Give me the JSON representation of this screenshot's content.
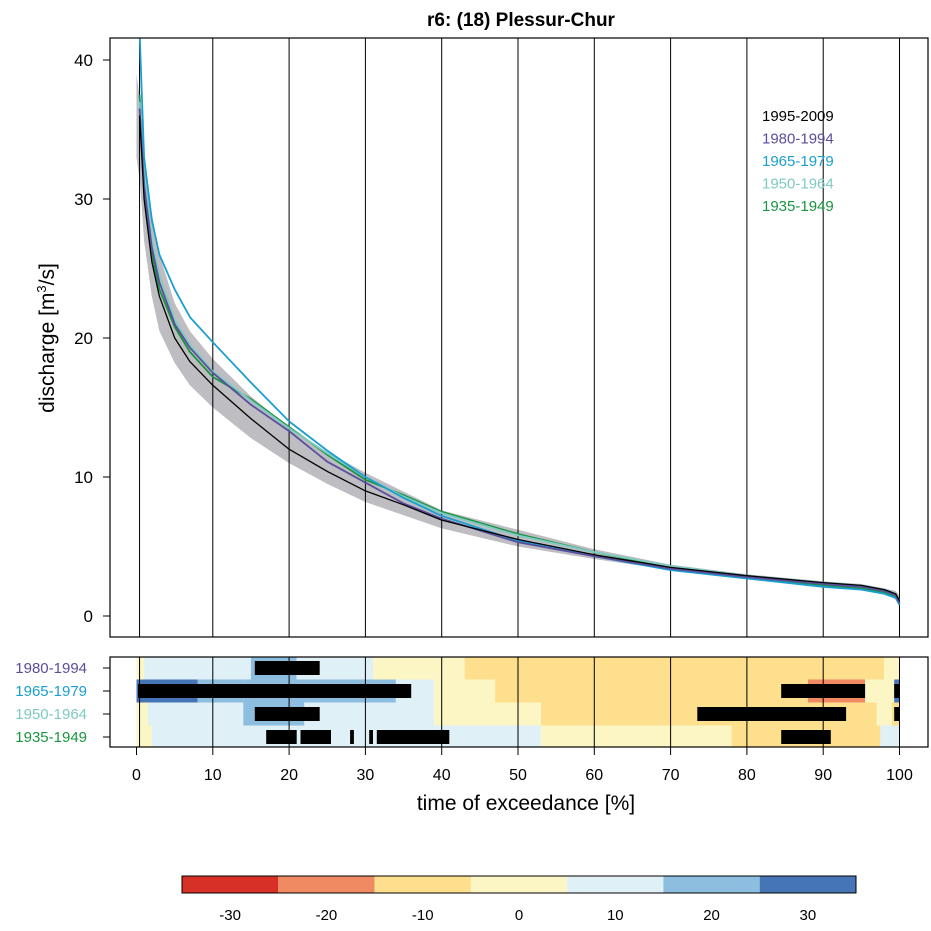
{
  "chart_data": [
    {
      "type": "line",
      "title": "r6: (18) Plessur-Chur",
      "ylabel": "discharge [m³/s]",
      "ylabel_main": "discharge [m",
      "ylabel_sup": "3",
      "ylabel_end": "/s]",
      "xlim": [
        0,
        100
      ],
      "ylim": [
        0,
        40
      ],
      "yticks": [
        0,
        10,
        20,
        30,
        40
      ],
      "vertical_grid": [
        0.4,
        10,
        20,
        30,
        40,
        50,
        60,
        70,
        80,
        90,
        100
      ],
      "legend_position": "top-right",
      "band": {
        "series": "1995-2009",
        "color": "#bdbdc2",
        "x": [
          0,
          0.5,
          1,
          2,
          3,
          5,
          7,
          10,
          15,
          20,
          25,
          30,
          40,
          50,
          60,
          70,
          80,
          90,
          95,
          98,
          99.5,
          100
        ],
        "upper": [
          39,
          37,
          33,
          29,
          26,
          22.5,
          20.5,
          18.5,
          15.8,
          13.6,
          11.8,
          10.3,
          7.6,
          6.2,
          4.8,
          3.7,
          3.0,
          2.5,
          2.3,
          2.0,
          1.8,
          1.5
        ],
        "lower": [
          33,
          31,
          27,
          23,
          20.5,
          18.2,
          16.6,
          15.0,
          12.8,
          11.0,
          9.5,
          8.2,
          6.3,
          5.0,
          4.1,
          3.3,
          2.7,
          2.2,
          2.0,
          1.6,
          1.2,
          1.0
        ]
      },
      "series": [
        {
          "name": "1995-2009",
          "color": "#000000",
          "x": [
            0.4,
            1,
            2,
            3,
            5,
            7,
            10,
            15,
            20,
            25,
            30,
            35,
            40,
            50,
            60,
            70,
            80,
            90,
            95,
            98,
            99.5,
            100
          ],
          "values": [
            36,
            30,
            25.5,
            23,
            20,
            18.3,
            16.6,
            14.2,
            12.0,
            10.4,
            9.0,
            8.0,
            6.9,
            5.5,
            4.4,
            3.5,
            2.9,
            2.4,
            2.2,
            1.9,
            1.6,
            1.1
          ]
        },
        {
          "name": "1980-1994",
          "color": "#5b4e9c",
          "x": [
            0.4,
            1,
            2,
            3,
            5,
            7,
            10,
            15,
            20,
            25,
            30,
            35,
            40,
            50,
            60,
            70,
            80,
            90,
            95,
            98,
            99.5,
            100
          ],
          "values": [
            36.5,
            31,
            26.5,
            24,
            21,
            19.3,
            17.5,
            15.2,
            13.3,
            11.1,
            9.6,
            8.1,
            7.0,
            5.3,
            4.3,
            3.4,
            2.8,
            2.3,
            2.1,
            1.8,
            1.5,
            0.9
          ]
        },
        {
          "name": "1965-1979",
          "color": "#1a9fd0",
          "x": [
            0.4,
            1,
            2,
            3,
            5,
            7,
            10,
            15,
            20,
            25,
            30,
            35,
            40,
            50,
            60,
            70,
            80,
            90,
            95,
            98,
            99.5,
            100
          ],
          "values": [
            42,
            33,
            28.5,
            26,
            23.5,
            21.5,
            19.7,
            16.8,
            14.0,
            11.9,
            10.0,
            8.5,
            7.2,
            5.4,
            4.3,
            3.3,
            2.7,
            2.1,
            1.9,
            1.6,
            1.3,
            0.8
          ]
        },
        {
          "name": "1950-1964",
          "color": "#7dcbc3",
          "x": [
            0.4,
            1,
            2,
            3,
            5,
            7,
            10,
            15,
            20,
            25,
            30,
            35,
            40,
            50,
            60,
            70,
            80,
            90,
            95,
            98,
            99.5,
            100
          ],
          "values": [
            37,
            32,
            27,
            24.5,
            21.3,
            19.5,
            17.6,
            15.5,
            13.5,
            11.7,
            10.0,
            8.6,
            7.4,
            5.8,
            4.6,
            3.6,
            2.9,
            2.4,
            2.2,
            1.9,
            1.6,
            1.1
          ]
        },
        {
          "name": "1935-1949",
          "color": "#1a9440",
          "x": [
            0.4,
            1,
            2,
            3,
            5,
            7,
            10,
            15,
            20,
            25,
            30,
            35,
            40,
            50,
            60,
            70,
            80,
            90,
            95,
            98,
            99.5,
            100
          ],
          "values": [
            37.5,
            31,
            26,
            23.5,
            20.8,
            19.0,
            17.2,
            15.6,
            13.6,
            11.6,
            9.8,
            8.7,
            7.5,
            5.9,
            4.6,
            3.5,
            2.8,
            2.2,
            2.0,
            1.7,
            1.4,
            0.9
          ]
        }
      ]
    },
    {
      "type": "heatmap",
      "xlabel": "time of exceedance [%]",
      "xticks": [
        0,
        10,
        20,
        30,
        40,
        50,
        60,
        70,
        80,
        90,
        100
      ],
      "xlim": [
        0,
        100
      ],
      "rows": [
        {
          "name": "1980-1994",
          "color": "#5b4e9c",
          "segments": [
            [
              0,
              1,
              0
            ],
            [
              1,
              15,
              10
            ],
            [
              15,
              21,
              20
            ],
            [
              21,
              31,
              10
            ],
            [
              31,
              43,
              0
            ],
            [
              43,
              98,
              -10
            ],
            [
              98,
              100,
              0
            ]
          ],
          "significant": [
            [
              15.5,
              24
            ]
          ]
        },
        {
          "name": "1965-1979",
          "color": "#1a9fd0",
          "segments": [
            [
              0,
              8,
              30
            ],
            [
              8,
              14,
              20
            ],
            [
              14,
              34,
              20
            ],
            [
              34,
              39,
              10
            ],
            [
              39,
              47,
              0
            ],
            [
              47,
              88,
              -10
            ],
            [
              88,
              95.5,
              -20
            ],
            [
              95.5,
              99.3,
              0
            ],
            [
              99.3,
              100,
              30
            ]
          ],
          "significant": [
            [
              0.2,
              36
            ],
            [
              84.5,
              95.5
            ],
            [
              99.3,
              100
            ]
          ]
        },
        {
          "name": "1950-1964",
          "color": "#7dcbc3",
          "segments": [
            [
              0,
              1.5,
              0
            ],
            [
              1.5,
              14,
              10
            ],
            [
              14,
              22,
              20
            ],
            [
              22,
              39,
              10
            ],
            [
              39,
              53,
              0
            ],
            [
              53,
              97,
              -10
            ],
            [
              97,
              99,
              0
            ],
            [
              99,
              100,
              -10
            ]
          ],
          "significant": [
            [
              15.5,
              24
            ],
            [
              73.5,
              93
            ],
            [
              99.3,
              100
            ]
          ]
        },
        {
          "name": "1935-1949",
          "color": "#1a9440",
          "segments": [
            [
              0,
              2,
              0
            ],
            [
              2,
              53,
              10
            ],
            [
              53,
              78,
              0
            ],
            [
              78,
              97.5,
              -10
            ],
            [
              97.5,
              100,
              10
            ]
          ],
          "significant": [
            [
              17,
              21
            ],
            [
              21.5,
              25.5
            ],
            [
              28,
              28.5
            ],
            [
              30.5,
              31
            ],
            [
              31.5,
              41
            ],
            [
              84.5,
              91
            ]
          ]
        }
      ]
    },
    {
      "type": "colorbar",
      "ticks": [
        -30,
        -20,
        -10,
        0,
        10,
        20,
        30
      ],
      "range": [
        -35,
        35
      ],
      "bins": [
        {
          "from": -35,
          "to": -25,
          "color": "#d73027"
        },
        {
          "from": -25,
          "to": -15,
          "color": "#ef8a62"
        },
        {
          "from": -15,
          "to": -5,
          "color": "#fddf8e"
        },
        {
          "from": -5,
          "to": 5,
          "color": "#fcf6c4"
        },
        {
          "from": 5,
          "to": 15,
          "color": "#dff0f7"
        },
        {
          "from": 15,
          "to": 25,
          "color": "#8dbedf"
        },
        {
          "from": 25,
          "to": 35,
          "color": "#4575b4"
        }
      ]
    }
  ]
}
